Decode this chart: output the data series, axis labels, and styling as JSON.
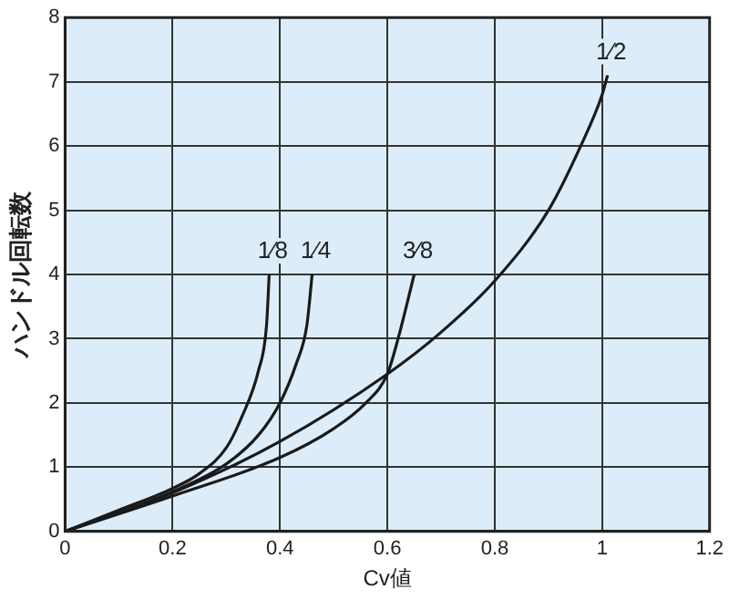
{
  "chart_data": {
    "type": "line",
    "xlabel": "Cv値",
    "ylabel": "ハンドル回転数",
    "xlim": [
      0,
      1.2
    ],
    "xticks": [
      0,
      0.2,
      0.4,
      0.6,
      0.8,
      1,
      1.2
    ],
    "ylim": [
      0,
      8
    ],
    "yticks": [
      0,
      1,
      2,
      3,
      4,
      5,
      6,
      7,
      8
    ],
    "grid": true,
    "legend": false,
    "marker": "none",
    "line_style": "solid",
    "series": [
      {
        "name": "1⁄8",
        "color": "#1a1a1a",
        "x": [
          0,
          0.1,
          0.2,
          0.25,
          0.3,
          0.33,
          0.36,
          0.375,
          0.38
        ],
        "values": [
          0,
          0.33,
          0.67,
          0.9,
          1.3,
          1.8,
          2.5,
          3.2,
          4
        ]
      },
      {
        "name": "1⁄4",
        "color": "#1a1a1a",
        "x": [
          0,
          0.2,
          0.3,
          0.36,
          0.4,
          0.43,
          0.45,
          0.46
        ],
        "values": [
          0,
          0.62,
          1.05,
          1.5,
          2,
          2.6,
          3.2,
          4
        ]
      },
      {
        "name": "3⁄8",
        "color": "#1a1a1a",
        "x": [
          0,
          0.2,
          0.4,
          0.5,
          0.56,
          0.6,
          0.62,
          0.65
        ],
        "values": [
          0,
          0.55,
          1.15,
          1.6,
          2,
          2.45,
          3,
          4
        ]
      },
      {
        "name": "1⁄2",
        "color": "#1a1a1a",
        "x": [
          0,
          0.2,
          0.4,
          0.6,
          0.7,
          0.8,
          0.9,
          0.96,
          1,
          1.01
        ],
        "values": [
          0,
          0.6,
          1.4,
          2.45,
          3.1,
          3.9,
          5,
          6,
          6.8,
          7.1
        ]
      }
    ]
  }
}
